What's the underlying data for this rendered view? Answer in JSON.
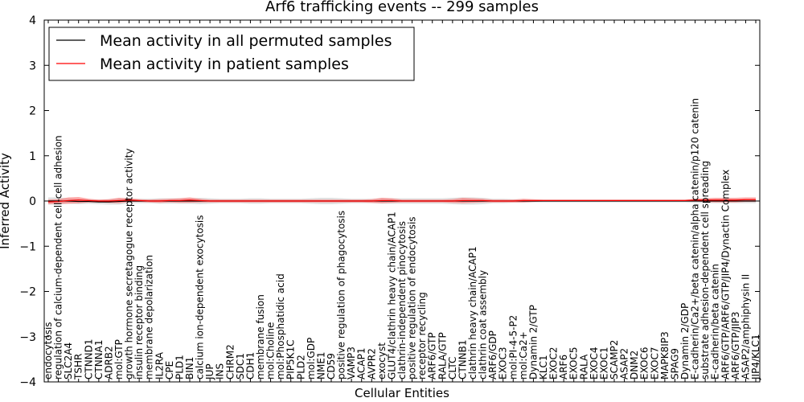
{
  "chart_data": {
    "type": "line",
    "title": "Arf6 trafficking events -- 299 samples",
    "xlabel": "Cellular Entities",
    "ylabel": "Inferred Activity",
    "ylim": [
      -4,
      4
    ],
    "yticks": [
      "4",
      "3",
      "2",
      "1",
      "0",
      "−1",
      "−2",
      "−3",
      "−4"
    ],
    "ytick_values": [
      4,
      3,
      2,
      1,
      0,
      -1,
      -2,
      -3,
      -4
    ],
    "legend_position": "top-left",
    "categories": [
      "endocytosis",
      "regulation of calcium-dependent cell-cell adhesion",
      "SLC2A4",
      "TSHR",
      "CTNND1",
      "CTNNA1",
      "ADRB2",
      "mol:GTP",
      "growth hormone secretagogue receptor activity",
      "insulin receptor binding",
      "membrane depolarization",
      "IL2RA",
      "CPE",
      "PLD1",
      "BIN1",
      "calcium ion-dependent exocytosis",
      "JUP",
      "INS",
      "CHRM2",
      "SDC1",
      "CDH1",
      "membrane fusion",
      "mol:Choline",
      "mol:Phosphatidic acid",
      "PIP5K1C",
      "PLD2",
      "mol:GDP",
      "NME1",
      "CD59",
      "positive regulation of phagocytosis",
      "VAMP3",
      "ACAP1",
      "AVPR2",
      "exocyst",
      "GLUT4/clathrin heavy chain/ACAP1",
      "clathrin-independent pinocytosis",
      "positive regulation of endocytosis",
      "receptor recycling",
      "ARF6/GTP",
      "RALA/GTP",
      "CLTC",
      "CTNNB1",
      "clathrin heavy chain/ACAP1",
      "clathrin coat assembly",
      "ARF6/GDP",
      "EXOC3",
      "mol:PI-4-5-P2",
      "mol:Ca2+",
      "Dynamin 2/GTP",
      "KLC1",
      "EXOC2",
      "ARF6",
      "EXOC5",
      "RALA",
      "EXOC4",
      "EXOC1",
      "SCAMP2",
      "ASAP2",
      "DNM2",
      "EXOC6",
      "EXOC7",
      "MAPK8IP3",
      "SPAG9",
      "Dynamin 2/GDP",
      "E-cadherin/Ca2+/beta catenin/alpha catenin/p120 catenin",
      "substrate adhesion-dependent cell spreading",
      "E-cadherin/beta catenin",
      "ARF6/GTP/ARF6/GTP/JIP4/Dynactin Complex",
      "ARF6/GTP/JIP3",
      "ASAP2/amphiphysin II",
      "JIP4/KLC1"
    ],
    "series": [
      {
        "name": "Mean activity in all permuted samples",
        "color": "#000000",
        "values": [
          0.0,
          0.0,
          0.0,
          -0.01,
          -0.01,
          -0.02,
          -0.02,
          -0.01,
          0.0,
          0.0,
          0.0,
          0.0,
          0.0,
          0.0,
          0.0,
          0.0,
          0.0,
          0.0,
          0.0,
          0.0,
          0.0,
          0.0,
          0.0,
          0.0,
          0.0,
          0.0,
          0.0,
          0.0,
          0.0,
          0.0,
          0.0,
          0.0,
          0.0,
          0.0,
          0.0,
          0.0,
          0.0,
          0.0,
          0.0,
          0.0,
          0.0,
          0.0,
          0.0,
          0.0,
          0.0,
          0.0,
          0.0,
          0.0,
          0.0,
          0.0,
          0.0,
          0.0,
          0.0,
          0.0,
          0.0,
          0.0,
          0.0,
          0.0,
          0.0,
          0.0,
          0.0,
          0.0,
          0.0,
          0.0,
          0.0,
          0.0,
          0.0,
          0.0,
          0.0,
          0.0,
          0.0
        ],
        "band": [
          0.08,
          0.08,
          0.06,
          0.06,
          0.05,
          0.05,
          0.06,
          0.07,
          0.05,
          0.05,
          0.05,
          0.06,
          0.06,
          0.06,
          0.06,
          0.07,
          0.06,
          0.05,
          0.05,
          0.05,
          0.06,
          0.06,
          0.05,
          0.05,
          0.05,
          0.05,
          0.06,
          0.07,
          0.07,
          0.06,
          0.05,
          0.05,
          0.05,
          0.06,
          0.06,
          0.06,
          0.06,
          0.06,
          0.06,
          0.06,
          0.07,
          0.08,
          0.08,
          0.07,
          0.05,
          0.05,
          0.04,
          0.04,
          0.03,
          0.03,
          0.03,
          0.03,
          0.03,
          0.03,
          0.03,
          0.03,
          0.03,
          0.03,
          0.03,
          0.03,
          0.03,
          0.03,
          0.03,
          0.03,
          0.04,
          0.05,
          0.05,
          0.05,
          0.05,
          0.05,
          0.05
        ]
      },
      {
        "name": "Mean activity in patient samples",
        "color": "#ff0000",
        "values": [
          -0.02,
          -0.01,
          0.01,
          0.02,
          0.01,
          0.0,
          0.0,
          0.01,
          0.02,
          0.01,
          0.0,
          0.0,
          0.01,
          0.01,
          0.02,
          0.01,
          0.0,
          0.0,
          0.0,
          0.0,
          0.0,
          0.0,
          0.0,
          0.0,
          0.0,
          0.0,
          0.0,
          0.0,
          0.0,
          0.0,
          0.0,
          0.0,
          0.0,
          0.01,
          0.01,
          0.0,
          0.0,
          0.0,
          0.0,
          0.0,
          0.0,
          0.01,
          0.01,
          0.01,
          0.0,
          0.0,
          0.0,
          0.01,
          0.01,
          0.01,
          0.01,
          0.01,
          0.01,
          0.01,
          0.01,
          0.01,
          0.01,
          0.01,
          0.01,
          0.01,
          0.01,
          0.01,
          0.01,
          0.01,
          0.02,
          0.02,
          0.02,
          0.02,
          0.02,
          0.03,
          0.03
        ],
        "band": [
          0.05,
          0.05,
          0.07,
          0.07,
          0.04,
          0.03,
          0.04,
          0.06,
          0.04,
          0.03,
          0.03,
          0.04,
          0.04,
          0.05,
          0.06,
          0.04,
          0.03,
          0.03,
          0.03,
          0.03,
          0.03,
          0.03,
          0.03,
          0.03,
          0.03,
          0.03,
          0.03,
          0.03,
          0.03,
          0.03,
          0.03,
          0.03,
          0.04,
          0.06,
          0.05,
          0.03,
          0.03,
          0.03,
          0.03,
          0.03,
          0.04,
          0.06,
          0.05,
          0.04,
          0.03,
          0.03,
          0.03,
          0.04,
          0.03,
          0.02,
          0.02,
          0.02,
          0.02,
          0.02,
          0.02,
          0.02,
          0.02,
          0.02,
          0.02,
          0.02,
          0.02,
          0.02,
          0.02,
          0.02,
          0.03,
          0.04,
          0.05,
          0.05,
          0.05,
          0.05,
          0.05
        ]
      }
    ]
  }
}
